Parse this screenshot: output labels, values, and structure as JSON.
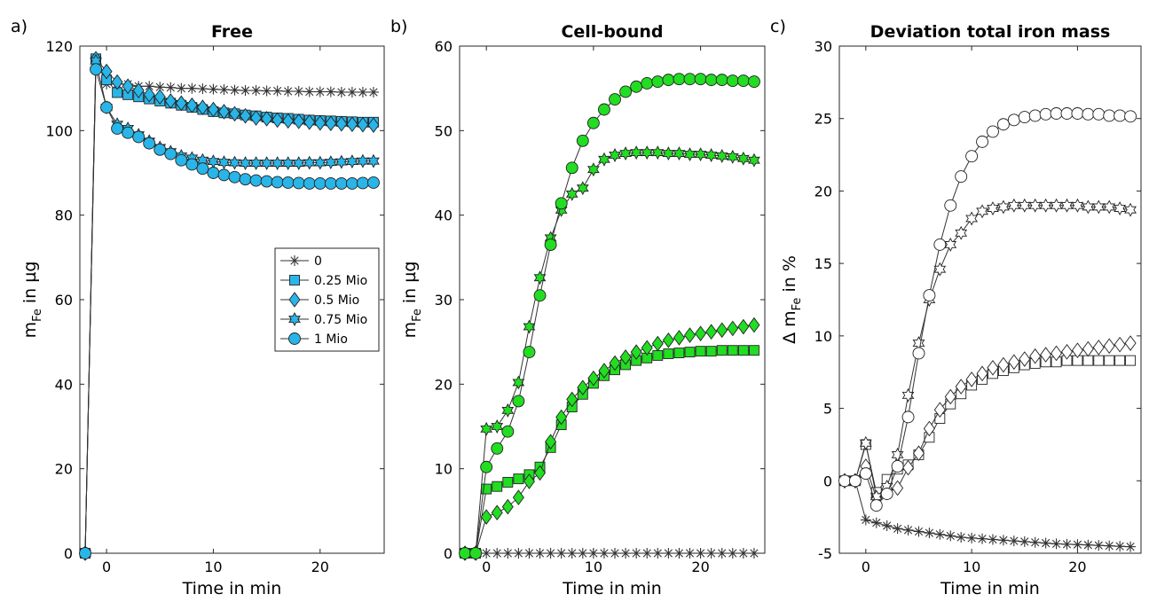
{
  "chart_data": [
    {
      "panel": "a)",
      "type": "line",
      "title": "Free",
      "xlabel": "Time in min",
      "ylabel": "m",
      "ylabel_sub": "Fe",
      "ylabel_rest": " in µg",
      "xlim": [
        -2.5,
        26
      ],
      "ylim": [
        0,
        120
      ],
      "xticks": [
        0,
        10,
        20
      ],
      "yticks": [
        0,
        20,
        40,
        60,
        80,
        100,
        120
      ],
      "fill": "#29b5e8",
      "legend": {
        "position": "center-right",
        "entries": [
          "0",
          "0.25 Mio",
          "0.5 Mio",
          "0.75 Mio",
          "1 Mio"
        ]
      },
      "series": [
        {
          "marker": "asterisk",
          "x": [
            -2,
            -1,
            0,
            1,
            2,
            3,
            4,
            5,
            6,
            7,
            8,
            9,
            10,
            11,
            12,
            13,
            14,
            15,
            16,
            17,
            18,
            19,
            20,
            21,
            22,
            23,
            24,
            25
          ],
          "values": [
            0,
            117,
            111,
            111,
            111,
            110.5,
            110.5,
            110.3,
            110.2,
            110,
            110,
            109.9,
            109.8,
            109.7,
            109.6,
            109.5,
            109.5,
            109.4,
            109.4,
            109.3,
            109.3,
            109.2,
            109.2,
            109.2,
            109.1,
            109.1,
            109.1,
            109.1
          ]
        },
        {
          "marker": "square",
          "x": [
            -2,
            -1,
            0,
            1,
            2,
            3,
            4,
            5,
            6,
            7,
            8,
            9,
            10,
            11,
            12,
            13,
            14,
            15,
            16,
            17,
            18,
            19,
            20,
            21,
            22,
            23,
            24,
            25
          ],
          "values": [
            0,
            117,
            112,
            109,
            108.5,
            108,
            107.5,
            107,
            106.5,
            106,
            105.5,
            105,
            104.5,
            104.2,
            104,
            103.7,
            103.5,
            103.2,
            103,
            102.9,
            102.7,
            102.5,
            102.4,
            102.3,
            102.2,
            102.1,
            102,
            102
          ]
        },
        {
          "marker": "diamond",
          "x": [
            -2,
            -1,
            0,
            1,
            2,
            3,
            4,
            5,
            6,
            7,
            8,
            9,
            10,
            11,
            12,
            13,
            14,
            15,
            16,
            17,
            18,
            19,
            20,
            21,
            22,
            23,
            24,
            25
          ],
          "values": [
            0,
            117,
            114,
            111.5,
            110.5,
            109.5,
            108.5,
            108,
            107,
            106.5,
            106,
            105.5,
            105,
            104.5,
            104,
            103.5,
            103,
            102.8,
            102.5,
            102.3,
            102.2,
            102,
            101.8,
            101.7,
            101.6,
            101.5,
            101.4,
            101.3
          ]
        },
        {
          "marker": "star6",
          "x": [
            -2,
            -1,
            0,
            1,
            2,
            3,
            4,
            5,
            6,
            7,
            8,
            9,
            10,
            11,
            12,
            13,
            14,
            15,
            16,
            17,
            18,
            19,
            20,
            21,
            22,
            23,
            24,
            25
          ],
          "values": [
            0,
            116.5,
            105.5,
            101.5,
            100.5,
            99,
            97.5,
            96,
            95,
            94,
            93.5,
            93,
            92.7,
            92.5,
            92.4,
            92.3,
            92.3,
            92.3,
            92.3,
            92.3,
            92.3,
            92.4,
            92.4,
            92.5,
            92.6,
            92.7,
            92.8,
            92.8
          ]
        },
        {
          "marker": "circle",
          "x": [
            -2,
            -1,
            0,
            1,
            2,
            3,
            4,
            5,
            6,
            7,
            8,
            9,
            10,
            11,
            12,
            13,
            14,
            15,
            16,
            17,
            18,
            19,
            20,
            21,
            22,
            23,
            24,
            25
          ],
          "values": [
            0,
            114.5,
            105.5,
            100.5,
            99.5,
            98.5,
            97,
            95.5,
            94.5,
            93,
            92,
            91,
            90,
            89.5,
            89,
            88.5,
            88.2,
            88,
            87.8,
            87.7,
            87.6,
            87.5,
            87.5,
            87.5,
            87.5,
            87.5,
            87.6,
            87.7
          ]
        }
      ]
    },
    {
      "panel": "b)",
      "type": "line",
      "title": "Cell-bound",
      "xlabel": "Time in min",
      "ylabel": "m",
      "ylabel_sub": "Fe",
      "ylabel_rest": " in µg",
      "xlim": [
        -2.5,
        26
      ],
      "ylim": [
        0,
        60
      ],
      "xticks": [
        0,
        10,
        20
      ],
      "yticks": [
        0,
        10,
        20,
        30,
        40,
        50,
        60
      ],
      "fill": "#22dd22",
      "series": [
        {
          "marker": "asterisk",
          "x": [
            -2,
            -1,
            0,
            1,
            2,
            3,
            4,
            5,
            6,
            7,
            8,
            9,
            10,
            11,
            12,
            13,
            14,
            15,
            16,
            17,
            18,
            19,
            20,
            21,
            22,
            23,
            24,
            25
          ],
          "values": [
            0,
            0,
            0,
            0,
            0,
            0,
            0,
            0,
            0,
            0,
            0,
            0,
            0,
            0,
            0,
            0,
            0,
            0,
            0,
            0,
            0,
            0,
            0,
            0,
            0,
            0,
            0,
            0
          ]
        },
        {
          "marker": "square",
          "x": [
            -2,
            -1,
            0,
            1,
            2,
            3,
            4,
            5,
            6,
            7,
            8,
            9,
            10,
            11,
            12,
            13,
            14,
            15,
            16,
            17,
            18,
            19,
            20,
            21,
            22,
            23,
            24,
            25
          ],
          "values": [
            0,
            0,
            7.6,
            7.9,
            8.4,
            8.8,
            9.3,
            10.2,
            12.5,
            15.2,
            17.3,
            18.8,
            20.1,
            21,
            21.7,
            22.3,
            22.8,
            23.1,
            23.4,
            23.6,
            23.7,
            23.8,
            23.9,
            23.9,
            24,
            24,
            24,
            24
          ]
        },
        {
          "marker": "diamond",
          "x": [
            -2,
            -1,
            0,
            1,
            2,
            3,
            4,
            5,
            6,
            7,
            8,
            9,
            10,
            11,
            12,
            13,
            14,
            15,
            16,
            17,
            18,
            19,
            20,
            21,
            22,
            23,
            24,
            25
          ],
          "values": [
            0,
            0,
            4.3,
            4.8,
            5.5,
            6.6,
            8.5,
            9.5,
            13.2,
            16.1,
            18.2,
            19.6,
            20.7,
            21.6,
            22.5,
            23.2,
            23.8,
            24.3,
            24.8,
            25.2,
            25.5,
            25.8,
            26,
            26.2,
            26.4,
            26.6,
            26.8,
            27
          ]
        },
        {
          "marker": "star6",
          "x": [
            -2,
            -1,
            0,
            1,
            2,
            3,
            4,
            5,
            6,
            7,
            8,
            9,
            10,
            11,
            12,
            13,
            14,
            15,
            16,
            17,
            18,
            19,
            20,
            21,
            22,
            23,
            24,
            25
          ],
          "values": [
            0,
            0,
            14.7,
            15,
            16.9,
            20.2,
            26.8,
            32.6,
            37.3,
            40.6,
            42.5,
            43.2,
            45.4,
            46.6,
            47.1,
            47.3,
            47.4,
            47.4,
            47.4,
            47.3,
            47.3,
            47.2,
            47.2,
            47.1,
            47,
            46.9,
            46.7,
            46.5
          ]
        },
        {
          "marker": "circle",
          "x": [
            -2,
            -1,
            0,
            1,
            2,
            3,
            4,
            5,
            6,
            7,
            8,
            9,
            10,
            11,
            12,
            13,
            14,
            15,
            16,
            17,
            18,
            19,
            20,
            21,
            22,
            23,
            24,
            25
          ],
          "values": [
            0,
            0,
            10.2,
            12.4,
            14.4,
            18,
            23.8,
            30.5,
            36.5,
            41.4,
            45.6,
            48.8,
            50.9,
            52.5,
            53.7,
            54.6,
            55.2,
            55.6,
            55.8,
            56,
            56.1,
            56.1,
            56.1,
            56,
            56,
            55.9,
            55.9,
            55.8
          ]
        }
      ]
    },
    {
      "panel": "c)",
      "type": "line",
      "title": "Deviation total iron mass",
      "xlabel": "Time in min",
      "ylabel": "Δ m",
      "ylabel_sub": "Fe",
      "ylabel_rest": " in %",
      "xlim": [
        -2.5,
        26
      ],
      "ylim": [
        -5,
        30
      ],
      "xticks": [
        0,
        10,
        20
      ],
      "yticks": [
        -5,
        0,
        5,
        10,
        15,
        20,
        25,
        30
      ],
      "fill": "#ffffff",
      "series": [
        {
          "marker": "asterisk",
          "x": [
            -2,
            -1,
            0,
            1,
            2,
            3,
            4,
            5,
            6,
            7,
            8,
            9,
            10,
            11,
            12,
            13,
            14,
            15,
            16,
            17,
            18,
            19,
            20,
            21,
            22,
            23,
            24,
            25
          ],
          "values": [
            0,
            0,
            -2.7,
            -2.9,
            -3.1,
            -3.3,
            -3.4,
            -3.5,
            -3.6,
            -3.7,
            -3.8,
            -3.9,
            -3.95,
            -4,
            -4.05,
            -4.1,
            -4.15,
            -4.2,
            -4.25,
            -4.3,
            -4.35,
            -4.38,
            -4.4,
            -4.43,
            -4.46,
            -4.49,
            -4.52,
            -4.55
          ]
        },
        {
          "marker": "square",
          "x": [
            -2,
            -1,
            0,
            1,
            2,
            3,
            4,
            5,
            6,
            7,
            8,
            9,
            10,
            11,
            12,
            13,
            14,
            15,
            16,
            17,
            18,
            19,
            20,
            21,
            22,
            23,
            24,
            25
          ],
          "values": [
            0,
            0,
            2.5,
            -0.8,
            0.1,
            0.8,
            1.1,
            1.8,
            3,
            4.3,
            5.3,
            6,
            6.6,
            7,
            7.4,
            7.6,
            7.8,
            8,
            8.1,
            8.2,
            8.2,
            8.3,
            8.3,
            8.3,
            8.3,
            8.3,
            8.3,
            8.3
          ]
        },
        {
          "marker": "diamond",
          "x": [
            -2,
            -1,
            0,
            1,
            2,
            3,
            4,
            5,
            6,
            7,
            8,
            9,
            10,
            11,
            12,
            13,
            14,
            15,
            16,
            17,
            18,
            19,
            20,
            21,
            22,
            23,
            24,
            25
          ],
          "values": [
            0,
            0,
            1,
            -1.2,
            -0.8,
            -0.5,
            0.9,
            1.9,
            3.6,
            4.9,
            5.8,
            6.5,
            7,
            7.4,
            7.8,
            8,
            8.2,
            8.4,
            8.6,
            8.7,
            8.8,
            8.9,
            9,
            9.1,
            9.2,
            9.3,
            9.4,
            9.5
          ]
        },
        {
          "marker": "star6",
          "x": [
            -2,
            -1,
            0,
            1,
            2,
            3,
            4,
            5,
            6,
            7,
            8,
            9,
            10,
            11,
            12,
            13,
            14,
            15,
            16,
            17,
            18,
            19,
            20,
            21,
            22,
            23,
            24,
            25
          ],
          "values": [
            0,
            0,
            2.6,
            -1.1,
            -0.4,
            1.8,
            5.9,
            9.5,
            12.5,
            14.6,
            16.3,
            17.1,
            18.1,
            18.6,
            18.8,
            18.9,
            19,
            19,
            19,
            19,
            19,
            19,
            19,
            18.9,
            18.9,
            18.9,
            18.8,
            18.7
          ]
        },
        {
          "marker": "circle",
          "x": [
            -2,
            -1,
            0,
            1,
            2,
            3,
            4,
            5,
            6,
            7,
            8,
            9,
            10,
            11,
            12,
            13,
            14,
            15,
            16,
            17,
            18,
            19,
            20,
            21,
            22,
            23,
            24,
            25
          ],
          "values": [
            0,
            0,
            0.5,
            -1.7,
            -0.9,
            1,
            4.4,
            8.8,
            12.8,
            16.3,
            19,
            21,
            22.4,
            23.4,
            24.1,
            24.6,
            24.9,
            25.1,
            25.2,
            25.3,
            25.35,
            25.35,
            25.35,
            25.3,
            25.3,
            25.2,
            25.2,
            25.15
          ]
        }
      ]
    }
  ]
}
